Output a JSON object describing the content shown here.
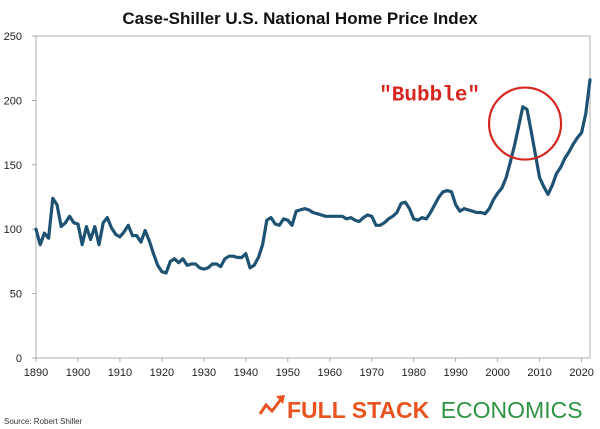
{
  "chart_data": {
    "type": "line",
    "title": "Case-Shiller U.S. National Home Price Index",
    "xlabel": "",
    "ylabel": "",
    "xlim": [
      1890,
      2022
    ],
    "ylim": [
      0,
      250
    ],
    "x_ticks": [
      1890,
      1900,
      1910,
      1920,
      1930,
      1940,
      1950,
      1960,
      1970,
      1980,
      1990,
      2000,
      2010,
      2020
    ],
    "y_ticks": [
      0,
      50,
      100,
      150,
      200,
      250
    ],
    "grid": false,
    "series": [
      {
        "color": "#1d5273",
        "x": [
          1890,
          1891,
          1892,
          1893,
          1894,
          1895,
          1896,
          1897,
          1898,
          1899,
          1900,
          1901,
          1902,
          1903,
          1904,
          1905,
          1906,
          1907,
          1908,
          1909,
          1910,
          1911,
          1912,
          1913,
          1914,
          1915,
          1916,
          1917,
          1918,
          1919,
          1920,
          1921,
          1922,
          1923,
          1924,
          1925,
          1926,
          1927,
          1928,
          1929,
          1930,
          1931,
          1932,
          1933,
          1934,
          1935,
          1936,
          1937,
          1938,
          1939,
          1940,
          1941,
          1942,
          1943,
          1944,
          1945,
          1946,
          1947,
          1948,
          1949,
          1950,
          1951,
          1952,
          1953,
          1954,
          1955,
          1956,
          1957,
          1958,
          1959,
          1960,
          1961,
          1962,
          1963,
          1964,
          1965,
          1966,
          1967,
          1968,
          1969,
          1970,
          1971,
          1972,
          1973,
          1974,
          1975,
          1976,
          1977,
          1978,
          1979,
          1980,
          1981,
          1982,
          1983,
          1984,
          1985,
          1986,
          1987,
          1988,
          1989,
          1990,
          1991,
          1992,
          1993,
          1994,
          1995,
          1996,
          1997,
          1998,
          1999,
          2000,
          2001,
          2002,
          2003,
          2004,
          2005,
          2006,
          2007,
          2008,
          2009,
          2010,
          2011,
          2012,
          2013,
          2014,
          2015,
          2016,
          2017,
          2018,
          2019,
          2020,
          2021,
          2022
        ],
        "values": [
          100,
          88,
          97,
          93,
          124,
          119,
          102,
          105,
          110,
          105,
          104,
          88,
          102,
          92,
          102,
          88,
          105,
          109,
          101,
          96,
          94,
          98,
          103,
          95,
          95,
          90,
          99,
          91,
          81,
          72,
          67,
          66,
          75,
          77,
          74,
          77,
          72,
          73,
          73,
          70,
          69,
          70,
          73,
          73,
          71,
          77,
          79,
          79,
          78,
          78,
          81,
          70,
          72,
          78,
          88,
          107,
          109,
          104,
          103,
          108,
          107,
          103,
          114,
          115,
          116,
          115,
          113,
          112,
          111,
          110,
          110,
          110,
          110,
          110,
          108,
          109,
          107,
          106,
          109,
          111,
          110,
          103,
          103,
          105,
          108,
          110,
          113,
          120,
          121,
          116,
          108,
          107,
          109,
          108,
          113,
          119,
          125,
          129,
          130,
          129,
          119,
          114,
          116,
          115,
          114,
          113,
          113,
          112,
          116,
          123,
          128,
          132,
          140,
          152,
          165,
          180,
          195,
          193,
          176,
          158,
          140,
          133,
          127,
          134,
          143,
          148,
          155,
          160,
          166,
          171,
          175,
          190,
          216
        ]
      }
    ],
    "annotations": [
      {
        "text": "\"Bubble\"",
        "x": 2007,
        "y": 196,
        "color": "#d6261f",
        "shape": "circle"
      }
    ]
  },
  "source": "Source: Robert Shiller",
  "brand": {
    "part1": "FULL STACK",
    "part2": "ECONOMICS",
    "color1": "#e8531f",
    "color2": "#2e9444",
    "icon": "trend-arrow-icon"
  }
}
